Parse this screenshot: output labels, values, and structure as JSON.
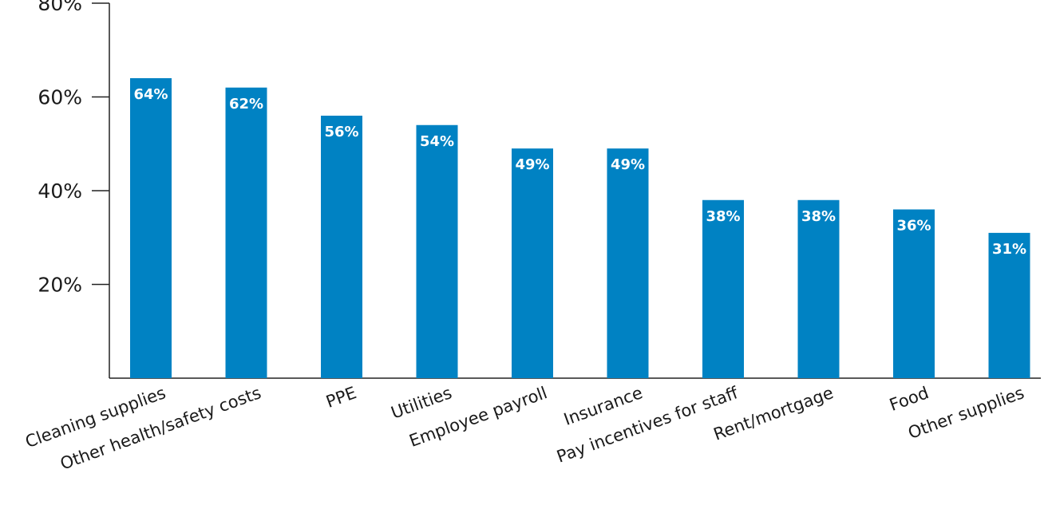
{
  "chart_data": {
    "type": "bar",
    "title": "",
    "xlabel": "",
    "ylabel": "",
    "categories": [
      "Cleaning supplies",
      "Other health/safety costs",
      "PPE",
      "Utilities",
      "Employee payroll",
      "Insurance",
      "Pay incentives for staff",
      "Rent/mortgage",
      "Food",
      "Other supplies"
    ],
    "values": [
      64,
      62,
      56,
      54,
      49,
      49,
      38,
      38,
      36,
      31
    ],
    "value_labels": [
      "64%",
      "62%",
      "56%",
      "54%",
      "49%",
      "49%",
      "38%",
      "38%",
      "36%",
      "31%"
    ],
    "ylim": [
      0,
      80
    ],
    "yticks": [
      20,
      40,
      60,
      80
    ],
    "ytick_labels": [
      "20%",
      "40%",
      "60%",
      "80%"
    ],
    "grid": false,
    "legend": "none",
    "colors": {
      "bar": "#0082c3",
      "value_label": "#ffffff",
      "axis": "#222222"
    }
  }
}
